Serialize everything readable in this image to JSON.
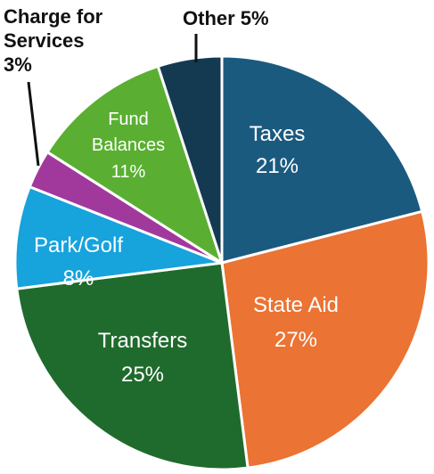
{
  "chart_data": {
    "type": "pie",
    "title": "",
    "slices": [
      {
        "name": "Taxes",
        "value": 21,
        "value_label": "21%",
        "color": "#1b5a7f"
      },
      {
        "name": "State Aid",
        "value": 27,
        "value_label": "27%",
        "color": "#eb7333"
      },
      {
        "name": "Transfers",
        "value": 25,
        "value_label": "25%",
        "color": "#1f6b2d"
      },
      {
        "name": "Park/Golf",
        "value": 8,
        "value_label": "8%",
        "color": "#17a3dc"
      },
      {
        "name": "Charge for Services",
        "value": 3,
        "value_label": "3%",
        "color": "#a1399c"
      },
      {
        "name": "Fund Balances",
        "value": 11,
        "value_label": "11%",
        "color": "#5aaf32"
      },
      {
        "name": "Other",
        "value": 5,
        "value_label": "5%",
        "color": "#143a52"
      }
    ],
    "outside_labels": {
      "charge_line1": "Charge for",
      "charge_line2": "Services",
      "charge_line3": "3%",
      "other": "Other 5%"
    },
    "inside_labels": {
      "taxes_name": "Taxes",
      "taxes_value": "21%",
      "state_aid_name": "State Aid",
      "state_aid_value": "27%",
      "transfers_name": "Transfers",
      "transfers_value": "25%",
      "park_golf_name": "Park/Golf",
      "park_golf_value": "8%",
      "fund_balances_line1": "Fund",
      "fund_balances_line2": "Balances",
      "fund_balances_value": "11%"
    }
  }
}
